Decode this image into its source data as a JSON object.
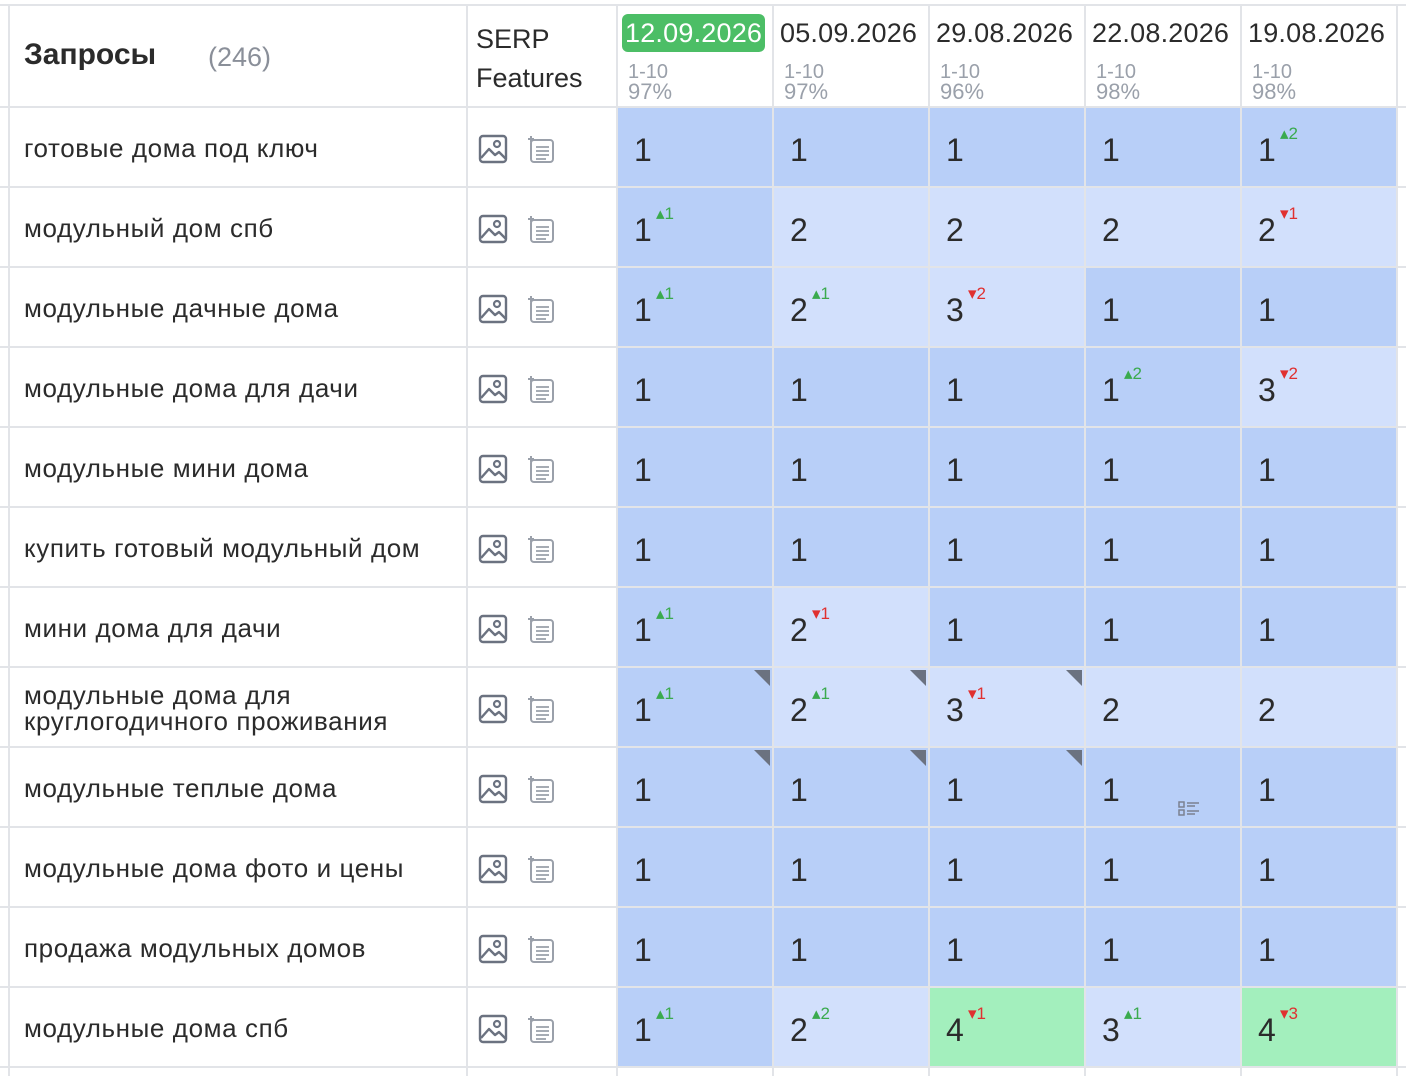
{
  "header": {
    "title": "Запросы",
    "count": "(246)",
    "serp_line1": "SERP",
    "serp_line2": "Features"
  },
  "colors": {
    "accent_green": "#4cbe66",
    "cell_dark": "#b8cff8",
    "cell_light": "#d2e0fc",
    "cell_green": "#a3efbd",
    "delta_up": "#3aaa4e",
    "delta_down": "#e03030"
  },
  "dates": [
    {
      "label": "12.09.2026",
      "range": "1-10",
      "pct": "97%",
      "active": true
    },
    {
      "label": "05.09.2026",
      "range": "1-10",
      "pct": "97%",
      "active": false
    },
    {
      "label": "29.08.2026",
      "range": "1-10",
      "pct": "96%",
      "active": false
    },
    {
      "label": "22.08.2026",
      "range": "1-10",
      "pct": "98%",
      "active": false
    },
    {
      "label": "19.08.2026",
      "range": "1-10",
      "pct": "98%",
      "active": false
    }
  ],
  "icons": [
    "image-icon",
    "featured-snippet-icon"
  ],
  "rows": [
    {
      "keyword": "готовые дома под ключ",
      "cells": [
        {
          "pos": "1",
          "bg": "dark"
        },
        {
          "pos": "1",
          "bg": "dark"
        },
        {
          "pos": "1",
          "bg": "dark"
        },
        {
          "pos": "1",
          "bg": "dark"
        },
        {
          "pos": "1",
          "bg": "dark",
          "delta": "2",
          "dir": "up"
        }
      ]
    },
    {
      "keyword": "модульный дом спб",
      "cells": [
        {
          "pos": "1",
          "bg": "dark",
          "delta": "1",
          "dir": "up"
        },
        {
          "pos": "2",
          "bg": "light"
        },
        {
          "pos": "2",
          "bg": "light"
        },
        {
          "pos": "2",
          "bg": "light"
        },
        {
          "pos": "2",
          "bg": "light",
          "delta": "1",
          "dir": "down"
        }
      ]
    },
    {
      "keyword": "модульные дачные дома",
      "cells": [
        {
          "pos": "1",
          "bg": "dark",
          "delta": "1",
          "dir": "up"
        },
        {
          "pos": "2",
          "bg": "light",
          "delta": "1",
          "dir": "up"
        },
        {
          "pos": "3",
          "bg": "light",
          "delta": "2",
          "dir": "down"
        },
        {
          "pos": "1",
          "bg": "dark"
        },
        {
          "pos": "1",
          "bg": "dark"
        }
      ]
    },
    {
      "keyword": "модульные дома для дачи",
      "cells": [
        {
          "pos": "1",
          "bg": "dark"
        },
        {
          "pos": "1",
          "bg": "dark"
        },
        {
          "pos": "1",
          "bg": "dark"
        },
        {
          "pos": "1",
          "bg": "dark",
          "delta": "2",
          "dir": "up"
        },
        {
          "pos": "3",
          "bg": "light",
          "delta": "2",
          "dir": "down"
        }
      ]
    },
    {
      "keyword": "модульные мини дома",
      "cells": [
        {
          "pos": "1",
          "bg": "dark"
        },
        {
          "pos": "1",
          "bg": "dark"
        },
        {
          "pos": "1",
          "bg": "dark"
        },
        {
          "pos": "1",
          "bg": "dark"
        },
        {
          "pos": "1",
          "bg": "dark"
        }
      ]
    },
    {
      "keyword": "купить готовый модульный дом",
      "cells": [
        {
          "pos": "1",
          "bg": "dark"
        },
        {
          "pos": "1",
          "bg": "dark"
        },
        {
          "pos": "1",
          "bg": "dark"
        },
        {
          "pos": "1",
          "bg": "dark"
        },
        {
          "pos": "1",
          "bg": "dark"
        }
      ]
    },
    {
      "keyword": "мини дома для дачи",
      "cells": [
        {
          "pos": "1",
          "bg": "dark",
          "delta": "1",
          "dir": "up"
        },
        {
          "pos": "2",
          "bg": "light",
          "delta": "1",
          "dir": "down"
        },
        {
          "pos": "1",
          "bg": "dark"
        },
        {
          "pos": "1",
          "bg": "dark"
        },
        {
          "pos": "1",
          "bg": "dark"
        }
      ]
    },
    {
      "keyword": "модульные дома для круглогодичного проживания",
      "cells": [
        {
          "pos": "1",
          "bg": "dark",
          "delta": "1",
          "dir": "up",
          "corner": true
        },
        {
          "pos": "2",
          "bg": "light",
          "delta": "1",
          "dir": "up",
          "corner": true
        },
        {
          "pos": "3",
          "bg": "light",
          "delta": "1",
          "dir": "down",
          "corner": true
        },
        {
          "pos": "2",
          "bg": "light"
        },
        {
          "pos": "2",
          "bg": "light"
        }
      ]
    },
    {
      "keyword": "модульные теплые дома",
      "cells": [
        {
          "pos": "1",
          "bg": "dark",
          "corner": true
        },
        {
          "pos": "1",
          "bg": "dark",
          "corner": true
        },
        {
          "pos": "1",
          "bg": "dark",
          "corner": true
        },
        {
          "pos": "1",
          "bg": "dark",
          "note": true
        },
        {
          "pos": "1",
          "bg": "dark"
        }
      ]
    },
    {
      "keyword": "модульные дома фото и цены",
      "cells": [
        {
          "pos": "1",
          "bg": "dark"
        },
        {
          "pos": "1",
          "bg": "dark"
        },
        {
          "pos": "1",
          "bg": "dark"
        },
        {
          "pos": "1",
          "bg": "dark"
        },
        {
          "pos": "1",
          "bg": "dark"
        }
      ]
    },
    {
      "keyword": "продажа модульных домов",
      "cells": [
        {
          "pos": "1",
          "bg": "dark"
        },
        {
          "pos": "1",
          "bg": "dark"
        },
        {
          "pos": "1",
          "bg": "dark"
        },
        {
          "pos": "1",
          "bg": "dark"
        },
        {
          "pos": "1",
          "bg": "dark"
        }
      ]
    },
    {
      "keyword": "модульные дома спб",
      "cells": [
        {
          "pos": "1",
          "bg": "dark",
          "delta": "1",
          "dir": "up"
        },
        {
          "pos": "2",
          "bg": "light",
          "delta": "2",
          "dir": "up"
        },
        {
          "pos": "4",
          "bg": "green",
          "delta": "1",
          "dir": "down"
        },
        {
          "pos": "3",
          "bg": "light",
          "delta": "1",
          "dir": "up"
        },
        {
          "pos": "4",
          "bg": "green",
          "delta": "3",
          "dir": "down"
        }
      ]
    }
  ]
}
